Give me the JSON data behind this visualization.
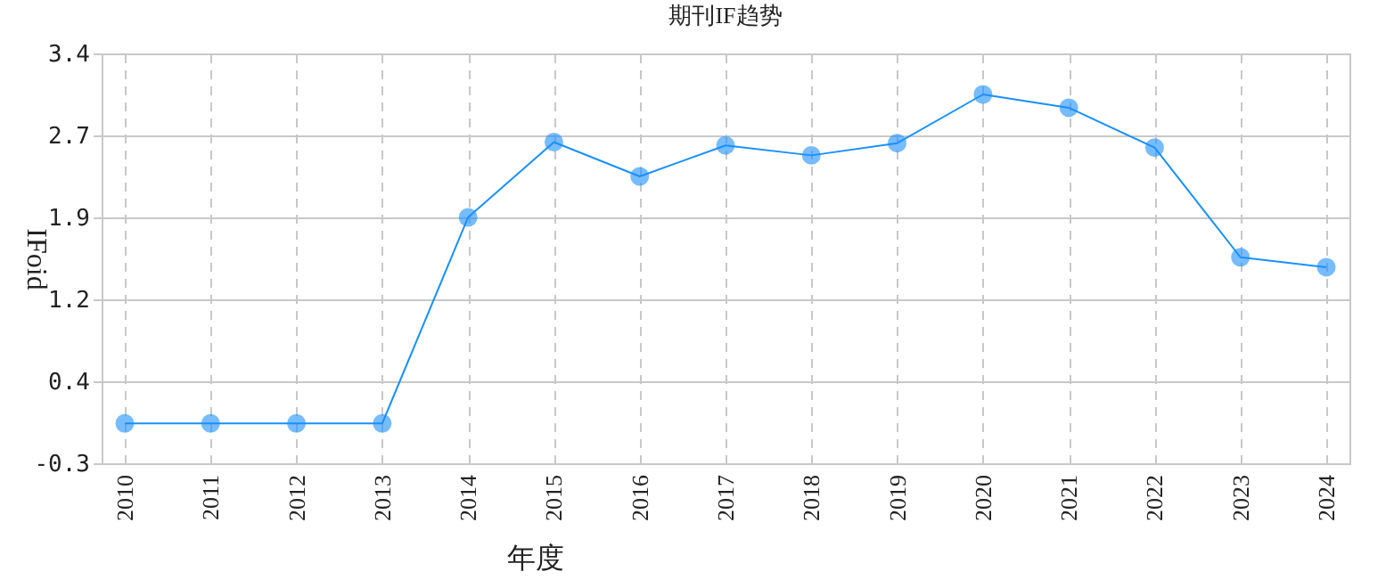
{
  "chart_data": {
    "type": "line",
    "title": "期刊IF趋势",
    "xlabel": "年度",
    "ylabel": "IFoid",
    "categories": [
      "2010",
      "2011",
      "2012",
      "2013",
      "2014",
      "2015",
      "2016",
      "2017",
      "2018",
      "2019",
      "2020",
      "2021",
      "2022",
      "2023",
      "2024"
    ],
    "series": [
      {
        "color": "#1a90ff",
        "values": [
          0.06,
          0.06,
          0.06,
          0.06,
          1.92,
          2.6,
          2.29,
          2.57,
          2.48,
          2.59,
          3.03,
          2.91,
          2.55,
          1.56,
          1.47
        ]
      }
    ],
    "ylim": [
      -0.3,
      3.4
    ],
    "yticks": [
      -0.3,
      {
        "value": 0.44,
        "label": "0.4"
      },
      {
        "value": 1.18,
        "label": "1.2"
      },
      {
        "value": 1.92,
        "label": "1.9"
      },
      {
        "value": 2.66,
        "label": "2.7"
      },
      3.4
    ],
    "grid": true,
    "marker": "circle",
    "line_style": "solid"
  }
}
